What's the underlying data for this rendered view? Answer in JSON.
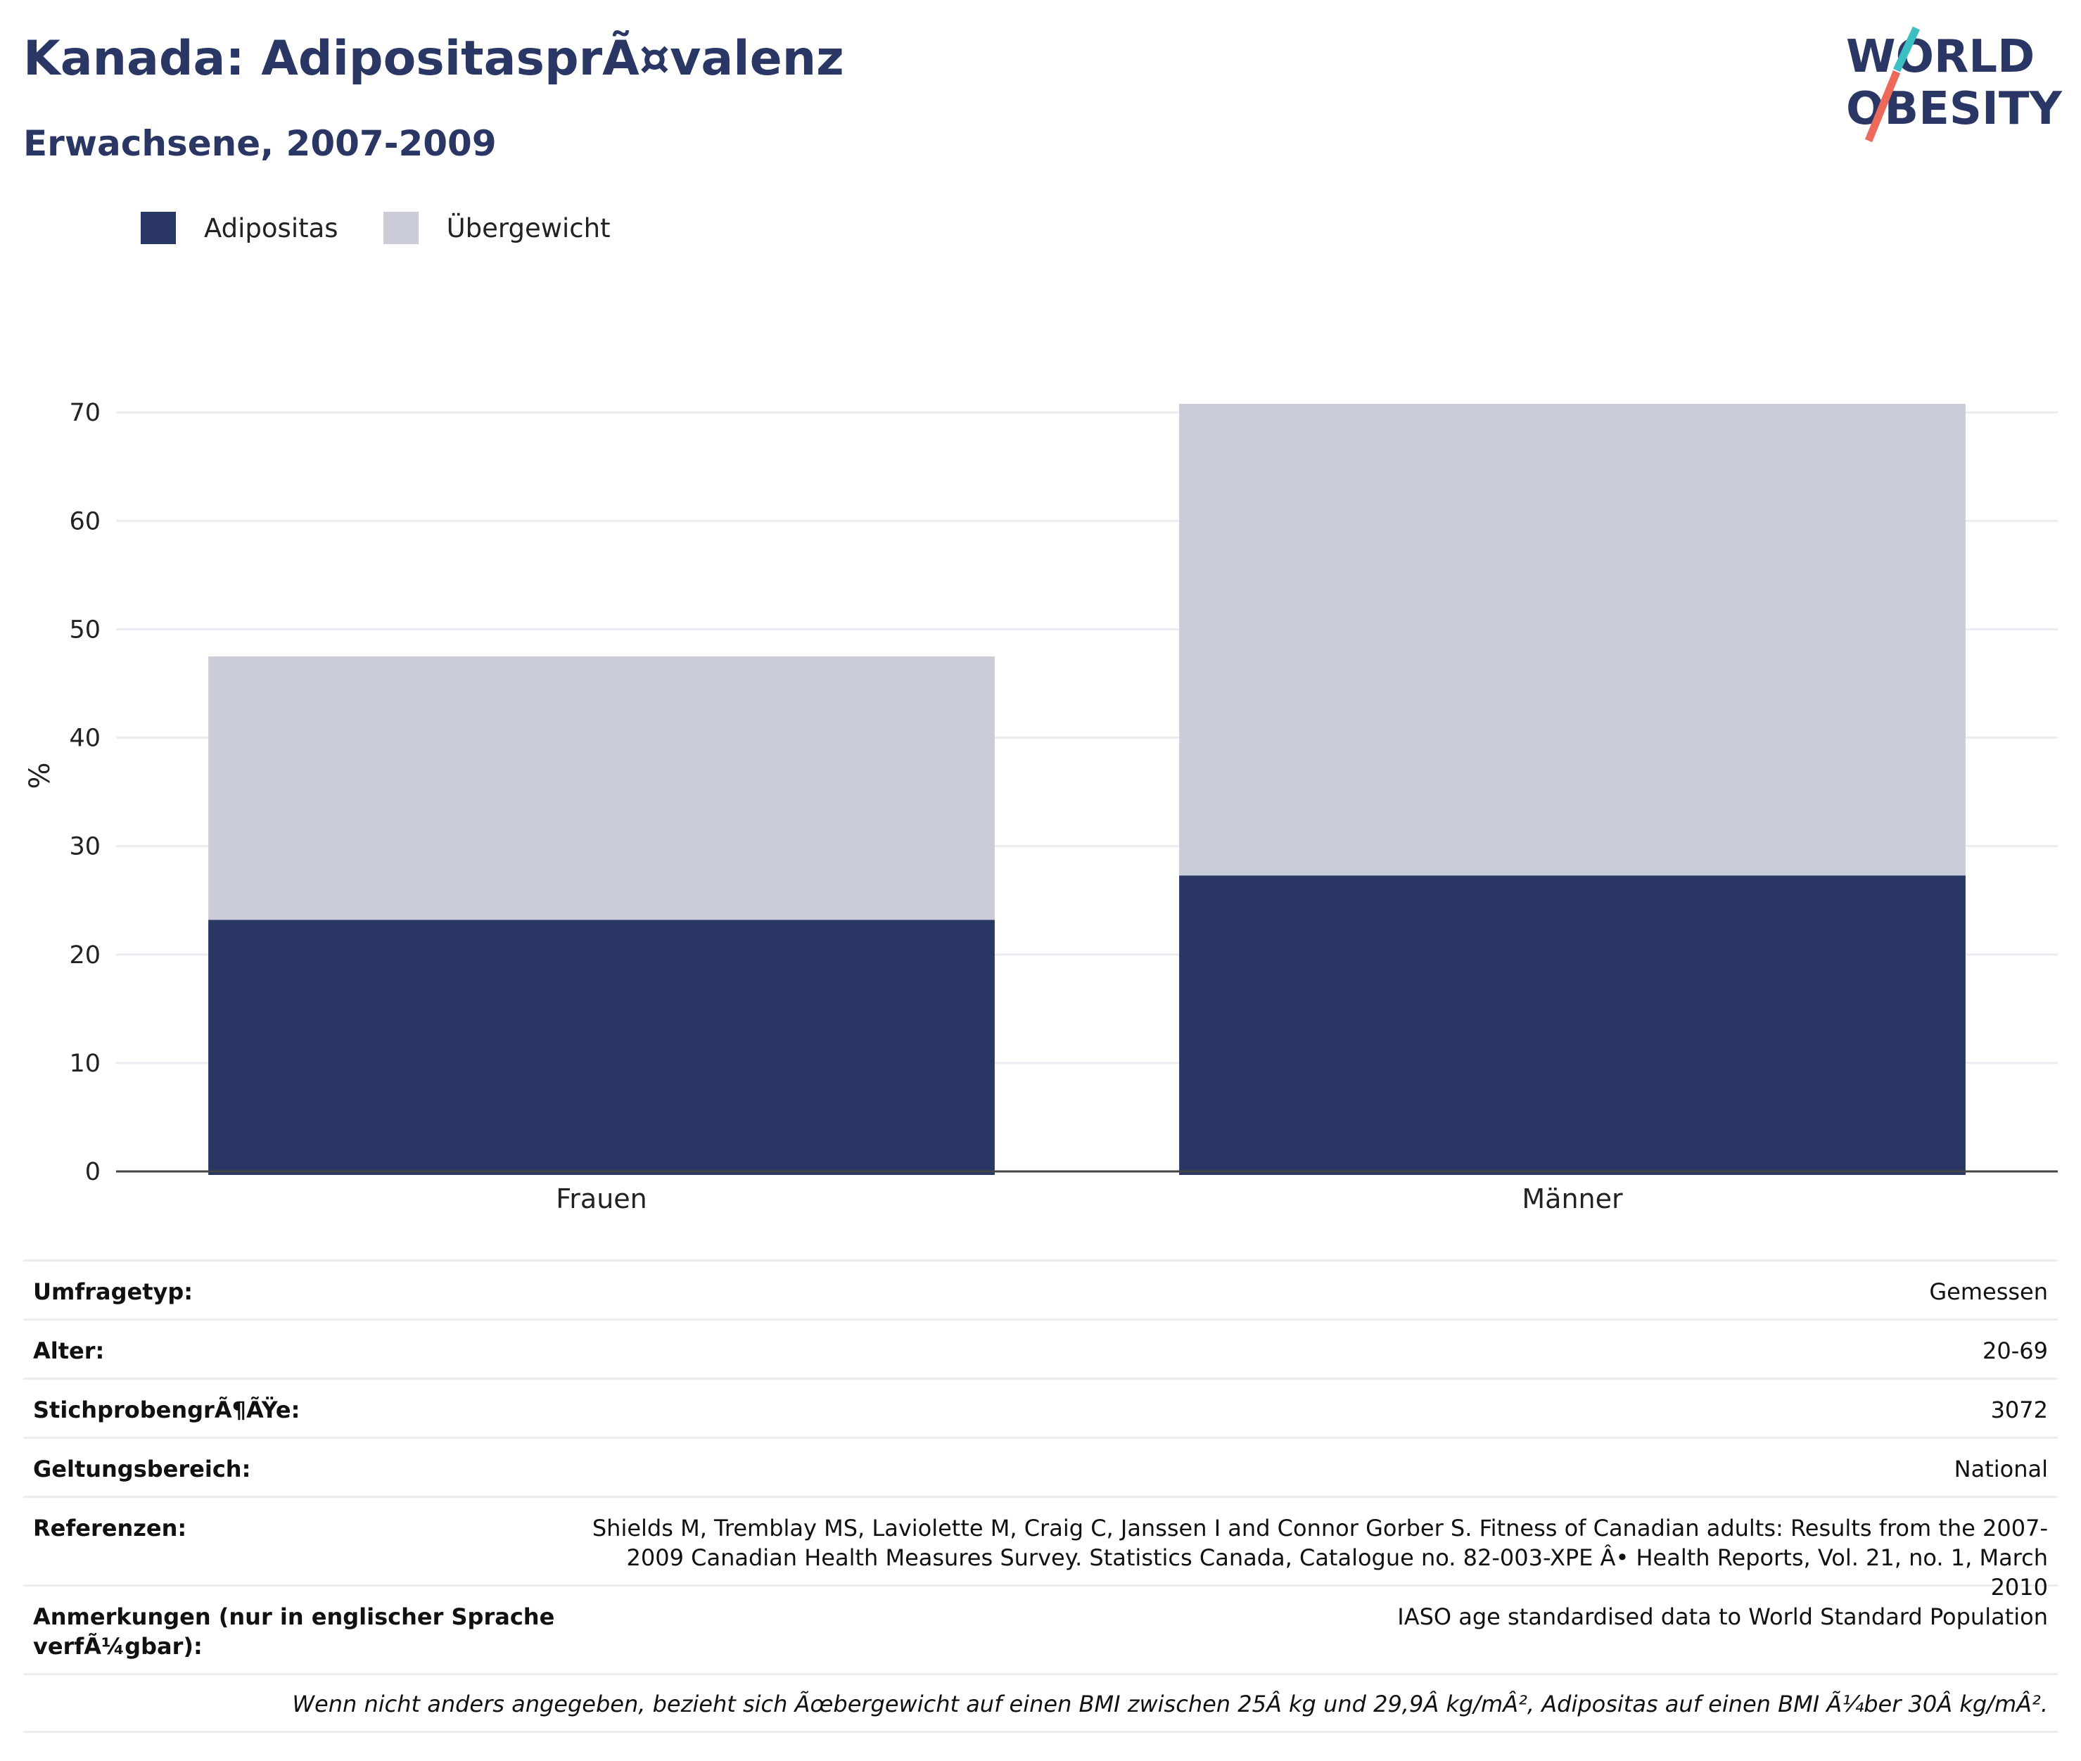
{
  "header": {
    "title": "Kanada: AdipositasprÃ¤valenz",
    "subtitle": "Erwachsene, 2007-2009"
  },
  "logo": {
    "line1": "WORLD",
    "line2": "OBESITY",
    "colors": {
      "text": "#2a3764",
      "slash_top": "#3bbfc2",
      "slash_bottom": "#ec6a5c"
    }
  },
  "legend": [
    {
      "label": "Adipositas",
      "color": "#2a3764"
    },
    {
      "label": "Übergewicht",
      "color": "#caccd8"
    }
  ],
  "chart_data": {
    "type": "bar",
    "stacked": true,
    "categories": [
      "Frauen",
      "Männer"
    ],
    "series": [
      {
        "name": "Adipositas",
        "values": [
          23.2,
          27.3
        ],
        "color": "#2a3764"
      },
      {
        "name": "Übergewicht",
        "values": [
          24.3,
          43.5
        ],
        "color": "#caccd8"
      }
    ],
    "ylabel": "%",
    "xlabel": "",
    "ylim": [
      0,
      73
    ],
    "yticks": [
      0,
      10,
      20,
      30,
      40,
      50,
      60,
      70
    ],
    "grid": true,
    "legend_position": "top-left"
  },
  "info": {
    "rows": [
      {
        "label": "Umfragetyp:",
        "value": "Gemessen"
      },
      {
        "label": "Alter:",
        "value": "20-69"
      },
      {
        "label": "StichprobengrÃ¶ÃŸe:",
        "value": "3072"
      },
      {
        "label": "Geltungsbereich:",
        "value": "National"
      },
      {
        "label": "Referenzen:",
        "value": "Shields M, Tremblay MS, Laviolette M, Craig C, Janssen I and Connor Gorber S. Fitness of Canadian adults: Results from the 2007-2009 Canadian Health Measures Survey. Statistics Canada, Catalogue no. 82-003-XPE Â• Health Reports, Vol. 21, no. 1, March 2010"
      },
      {
        "label": "Anmerkungen (nur in englischer Sprache verfÃ¼gbar):",
        "value": "IASO age standardised data to World Standard Population"
      }
    ],
    "note": "Wenn nicht anders angegeben, bezieht sich Ãœbergewicht auf einen BMI zwischen 25Â kg und 29,9Â kg/mÂ², Adipositas auf einen BMI Ã¼ber 30Â kg/mÂ²."
  }
}
